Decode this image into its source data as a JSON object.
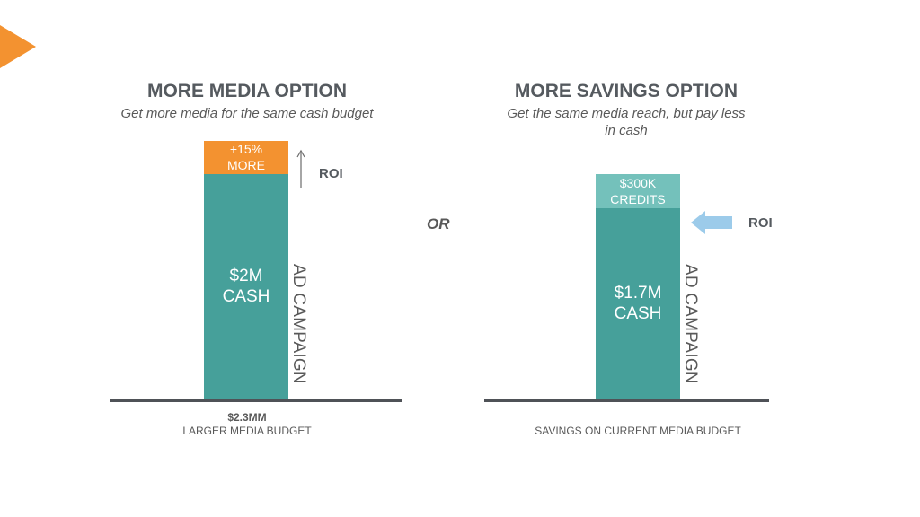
{
  "colors": {
    "accent_orange": "#f39230",
    "cash_teal": "#46a09a",
    "credits_teal": "#74c1bb",
    "arrow_blue": "#9ccbea",
    "baseline_gray": "#4f5257",
    "text_gray": "#555a5f"
  },
  "icons": {
    "corner": "orange-triangle-icon",
    "roi_up": "arrow-up-icon",
    "roi_left": "arrow-left-icon"
  },
  "separator": "OR",
  "chart_data": [
    {
      "type": "bar",
      "title": "MORE MEDIA OPTION",
      "subtitle": "Get more media for the same cash budget",
      "stacked": true,
      "unit": "$M",
      "total": 2.3,
      "segments": [
        {
          "label": "$2M\nCASH",
          "value": 2.0,
          "color": "#46a09a"
        },
        {
          "label": "+15%\nMORE",
          "value": 0.3,
          "color": "#f39230"
        }
      ],
      "side_label": "AD CAMPAIGN",
      "roi_label": "ROI",
      "roi_direction": "up",
      "footer_value": "$2.3MM",
      "footer_label": "LARGER MEDIA BUDGET"
    },
    {
      "type": "bar",
      "title": "MORE SAVINGS OPTION",
      "subtitle": "Get the same media reach, but pay less in cash",
      "stacked": true,
      "unit": "$M",
      "total": 2.0,
      "segments": [
        {
          "label": "$1.7M\nCASH",
          "value": 1.7,
          "color": "#46a09a"
        },
        {
          "label": "$300K\nCREDITS",
          "value": 0.3,
          "color": "#74c1bb"
        }
      ],
      "side_label": "AD CAMPAIGN",
      "roi_label": "ROI",
      "roi_direction": "left",
      "footer_value": "",
      "footer_label": "SAVINGS ON CURRENT MEDIA BUDGET"
    }
  ]
}
